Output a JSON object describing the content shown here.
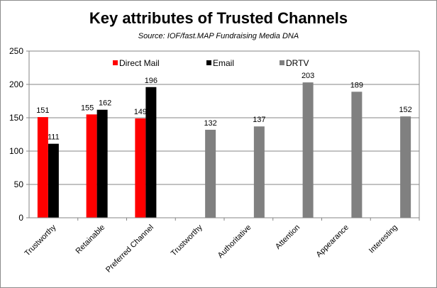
{
  "chart_data": {
    "type": "bar",
    "title": "Key attributes of Trusted Channels",
    "subtitle": "Source:  IOF/fast.MAP Fundraising Media DNA",
    "categories": [
      "Trustworthy",
      "Retainable",
      "Preferred Channel",
      "Trustworthy",
      "Authoritative",
      "Attention",
      "Appearance",
      "Interesting"
    ],
    "series": [
      {
        "name": "Direct Mail",
        "color": "#ff0000",
        "values": [
          151,
          155,
          149,
          null,
          null,
          null,
          null,
          null
        ]
      },
      {
        "name": "Email",
        "color": "#000000",
        "values": [
          111,
          162,
          196,
          null,
          null,
          null,
          null,
          null
        ]
      },
      {
        "name": "DRTV",
        "color": "#808080",
        "values": [
          null,
          null,
          null,
          132,
          137,
          203,
          189,
          152
        ]
      }
    ],
    "ylim": [
      0,
      250
    ],
    "yticks": [
      0,
      50,
      100,
      150,
      200,
      250
    ],
    "grid": true,
    "legend": "top"
  }
}
